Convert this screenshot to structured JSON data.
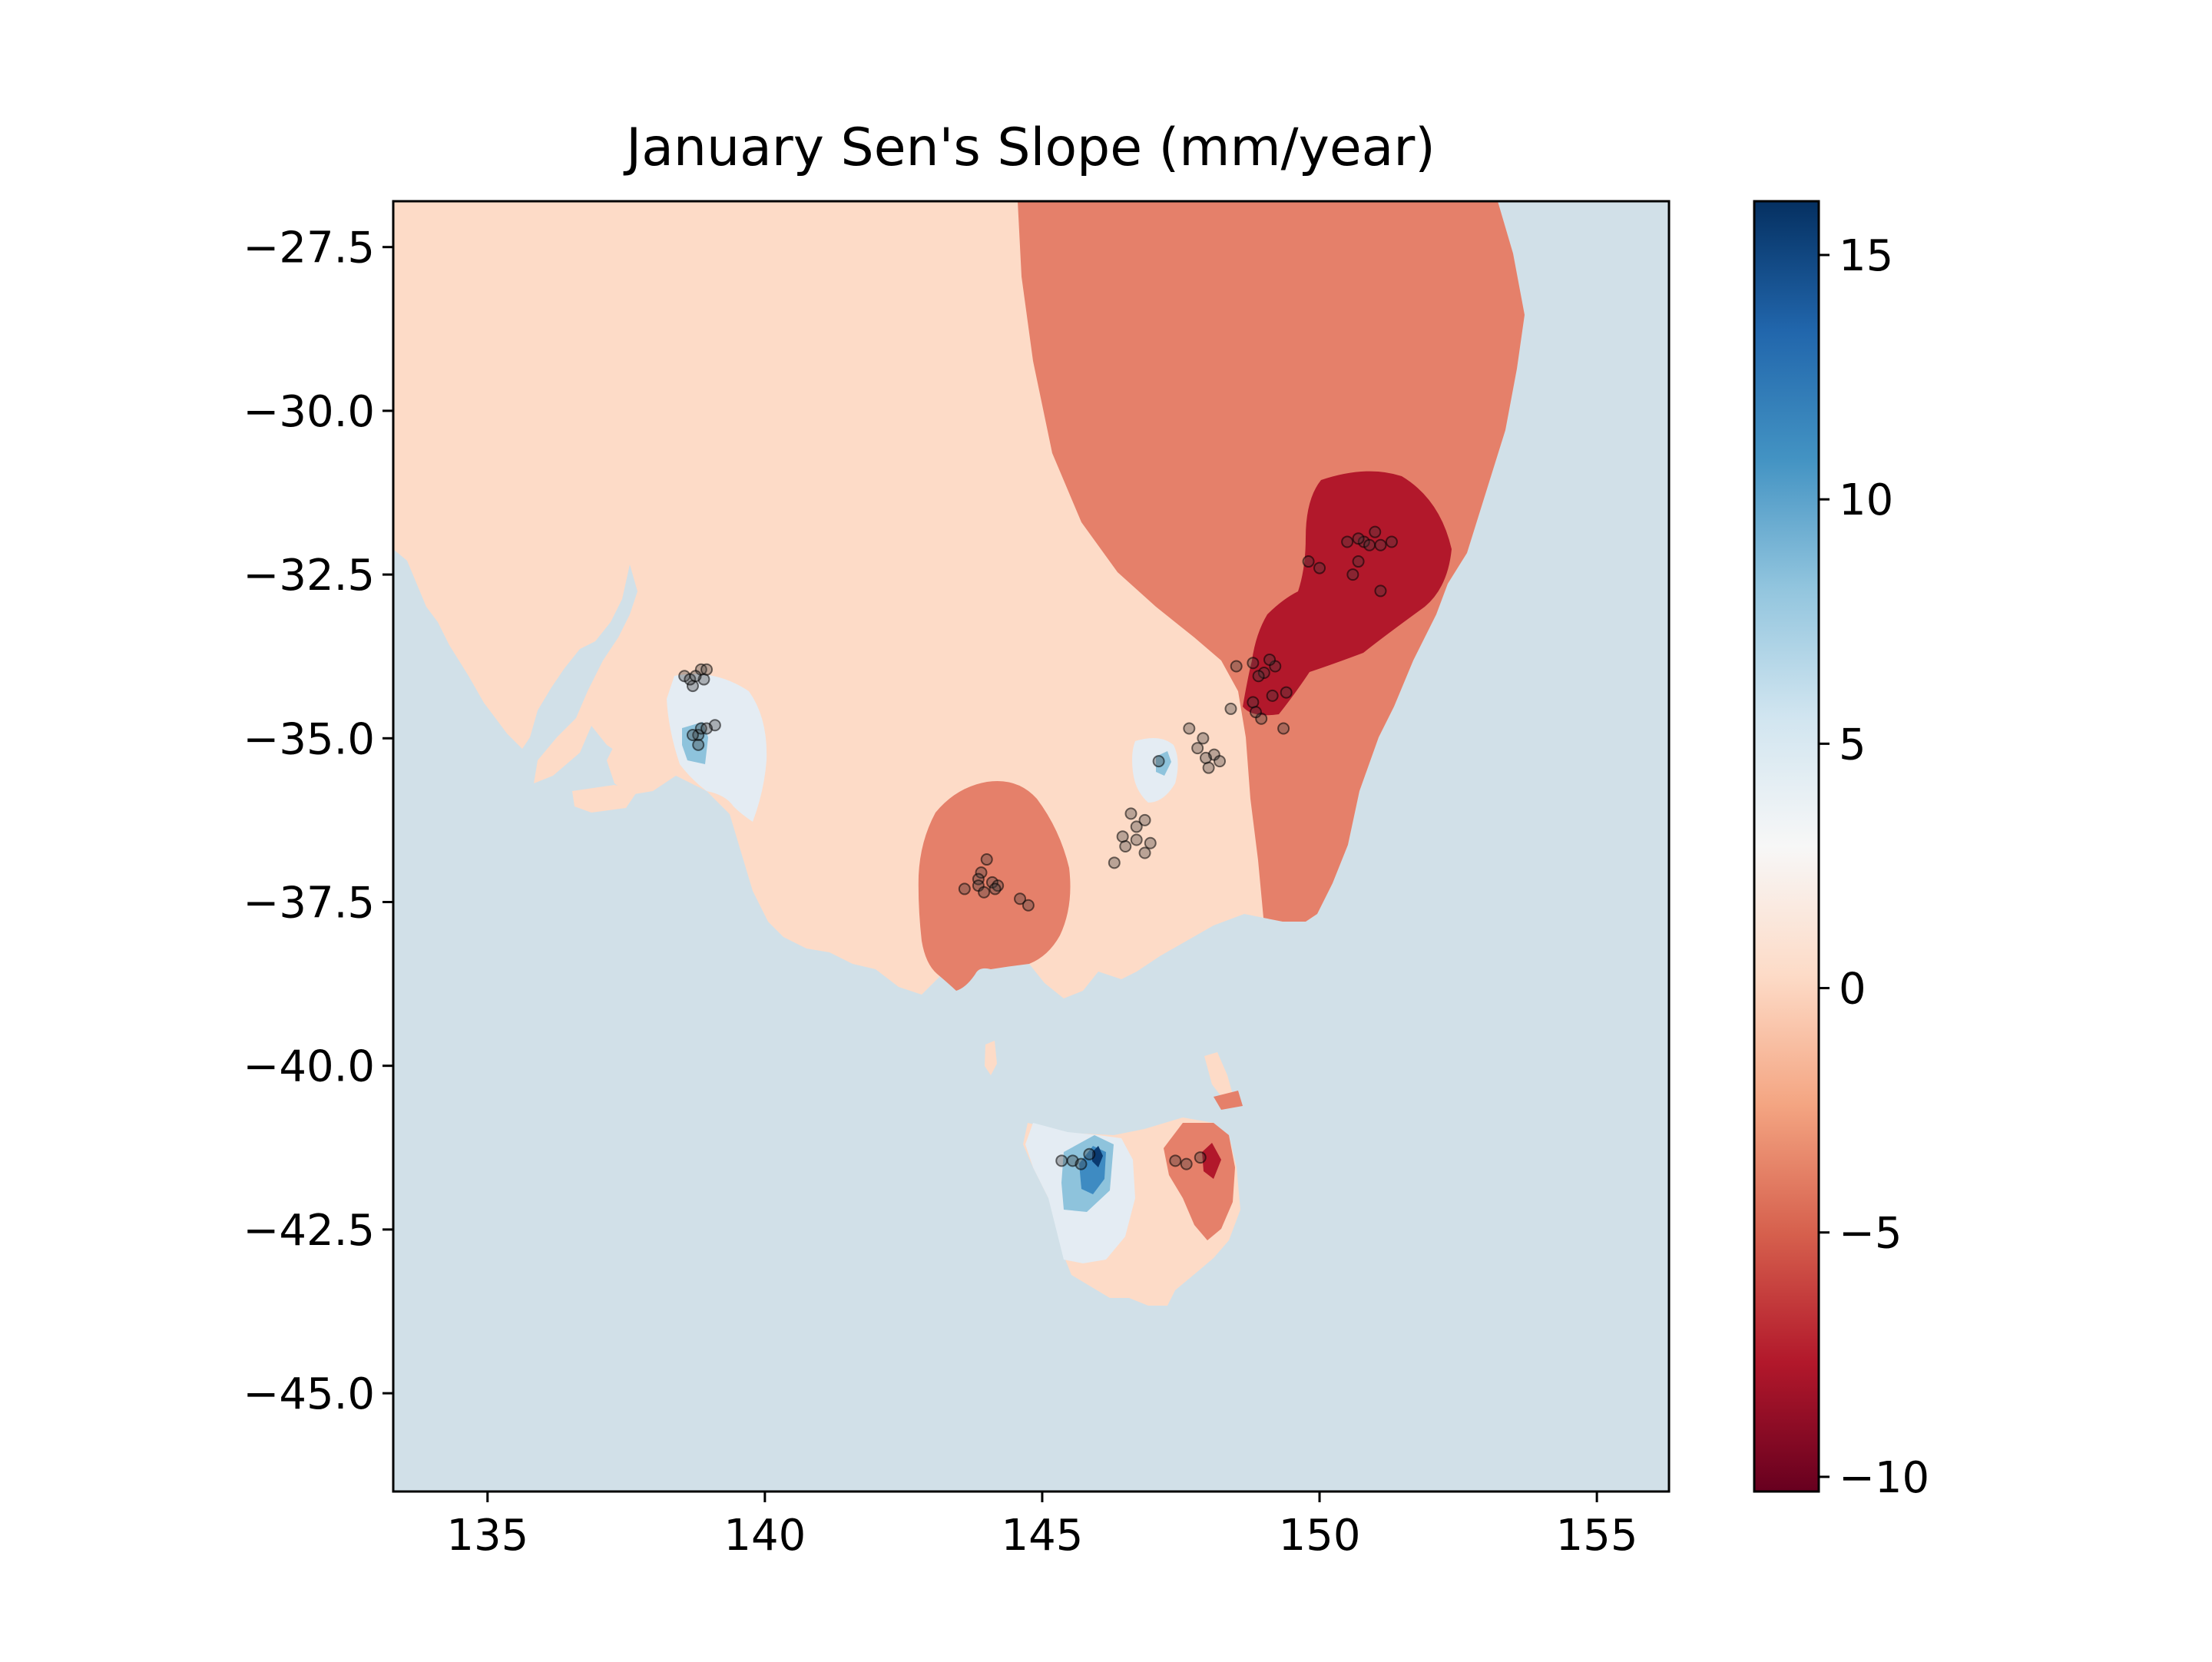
{
  "chart_data": {
    "type": "heatmap",
    "title": "January Sen's Slope (mm/year)",
    "xlabel": "",
    "ylabel": "",
    "xlim": [
      133.3,
      156.3
    ],
    "ylim": [
      -46.5,
      -26.8
    ],
    "x_ticks": [
      135,
      140,
      145,
      150,
      155
    ],
    "x_tick_labels": [
      "135",
      "140",
      "145",
      "150",
      "155"
    ],
    "y_ticks": [
      -27.5,
      -30.0,
      -32.5,
      -35.0,
      -37.5,
      -40.0,
      -42.5,
      -45.0
    ],
    "y_tick_labels": [
      "−27.5",
      "−30.0",
      "−32.5",
      "−35.0",
      "−37.5",
      "−40.0",
      "−42.5",
      "−45.0"
    ],
    "colorbar": {
      "colormap": "RdBu",
      "range": [
        -10.3,
        16.1
      ],
      "ticks": [
        15,
        10,
        5,
        0,
        -5,
        -10
      ],
      "tick_labels": [
        "15",
        "10",
        "5",
        "0",
        "−5",
        "−10"
      ],
      "stops": [
        "#67001f",
        "#b2182b",
        "#d6604d",
        "#f4a582",
        "#fddbc7",
        "#f7f7f7",
        "#d1e5f0",
        "#92c5de",
        "#4393c3",
        "#2166ac",
        "#053061"
      ]
    },
    "ocean_color": "#d1e0e8",
    "grid": false,
    "contour_levels": {
      "background_land": -1.5,
      "north_east_band": -5,
      "hunter_hotspot": -8.5,
      "victoria_west_hotspot": -5,
      "tasmania_east_hotspot": -5,
      "tasmania_east_core": -8.5,
      "adelaide_patch": 1.5,
      "adelaide_core": 6,
      "canberra_patch": 1.5,
      "canberra_core": 6,
      "tasmania_west_patch": 1.5,
      "tasmania_west_mid": 6,
      "tasmania_west_core": 11,
      "tasmania_west_peak": 16
    },
    "stations": [
      [
        138.55,
        -34.05
      ],
      [
        138.7,
        -34.2
      ],
      [
        138.85,
        -33.95
      ],
      [
        138.65,
        -34.1
      ],
      [
        138.9,
        -34.1
      ],
      [
        138.95,
        -33.95
      ],
      [
        138.75,
        -34.05
      ],
      [
        138.8,
        -34.95
      ],
      [
        138.85,
        -34.85
      ],
      [
        139.1,
        -34.8
      ],
      [
        138.95,
        -34.85
      ],
      [
        138.7,
        -34.95
      ],
      [
        138.8,
        -35.1
      ],
      [
        150.5,
        -32.0
      ],
      [
        150.8,
        -32.0
      ],
      [
        151.0,
        -31.85
      ],
      [
        150.9,
        -32.05
      ],
      [
        151.3,
        -32.0
      ],
      [
        151.1,
        -32.05
      ],
      [
        150.7,
        -31.95
      ],
      [
        149.8,
        -32.3
      ],
      [
        150.0,
        -32.4
      ],
      [
        150.7,
        -32.3
      ],
      [
        150.6,
        -32.5
      ],
      [
        151.1,
        -32.75
      ],
      [
        148.5,
        -33.9
      ],
      [
        148.8,
        -33.85
      ],
      [
        149.0,
        -34.0
      ],
      [
        149.2,
        -33.9
      ],
      [
        149.1,
        -33.8
      ],
      [
        148.9,
        -34.05
      ],
      [
        149.15,
        -34.35
      ],
      [
        149.4,
        -34.3
      ],
      [
        148.8,
        -34.45
      ],
      [
        149.35,
        -34.85
      ],
      [
        148.95,
        -34.7
      ],
      [
        148.4,
        -34.55
      ],
      [
        148.85,
        -34.6
      ],
      [
        147.65,
        -34.85
      ],
      [
        147.9,
        -35.0
      ],
      [
        147.8,
        -35.15
      ],
      [
        148.1,
        -35.25
      ],
      [
        148.0,
        -35.45
      ],
      [
        147.95,
        -35.3
      ],
      [
        148.2,
        -35.35
      ],
      [
        147.1,
        -35.35
      ],
      [
        146.6,
        -36.15
      ],
      [
        146.85,
        -36.25
      ],
      [
        146.7,
        -36.35
      ],
      [
        146.45,
        -36.5
      ],
      [
        146.7,
        -36.55
      ],
      [
        146.5,
        -36.65
      ],
      [
        146.95,
        -36.6
      ],
      [
        146.85,
        -36.75
      ],
      [
        146.3,
        -36.9
      ],
      [
        143.9,
        -37.05
      ],
      [
        144.0,
        -36.85
      ],
      [
        143.85,
        -37.15
      ],
      [
        144.1,
        -37.2
      ],
      [
        144.2,
        -37.25
      ],
      [
        143.6,
        -37.3
      ],
      [
        143.85,
        -37.25
      ],
      [
        144.6,
        -37.45
      ],
      [
        144.75,
        -37.55
      ],
      [
        143.95,
        -37.35
      ],
      [
        144.15,
        -37.3
      ],
      [
        145.35,
        -41.45
      ],
      [
        145.55,
        -41.45
      ],
      [
        145.7,
        -41.5
      ],
      [
        145.85,
        -41.35
      ],
      [
        147.4,
        -41.45
      ],
      [
        147.6,
        -41.5
      ],
      [
        147.85,
        -41.4
      ]
    ]
  }
}
